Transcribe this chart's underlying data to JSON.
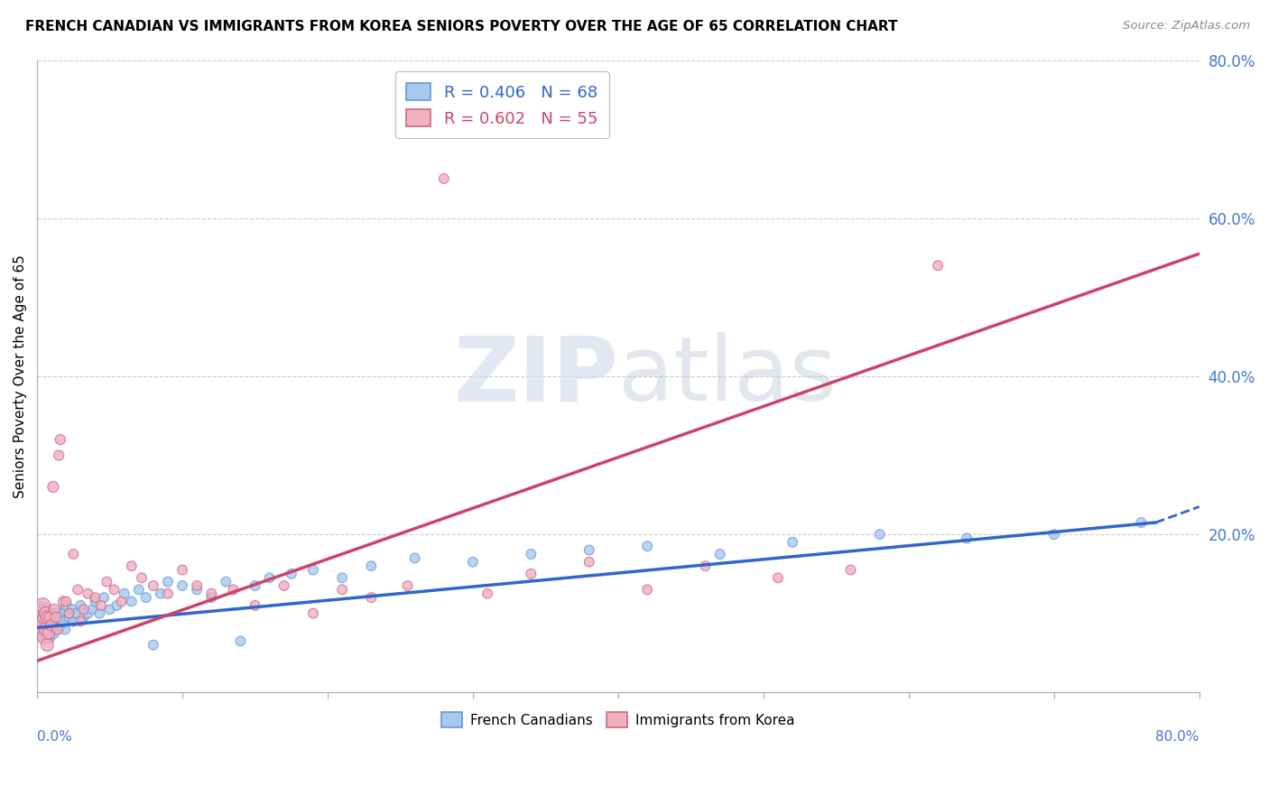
{
  "title": "FRENCH CANADIAN VS IMMIGRANTS FROM KOREA SENIORS POVERTY OVER THE AGE OF 65 CORRELATION CHART",
  "source": "Source: ZipAtlas.com",
  "ylabel": "Seniors Poverty Over the Age of 65",
  "series": [
    {
      "name": "French Canadians",
      "R": 0.406,
      "N": 68,
      "color": "#a8c8f0",
      "edge_color": "#6699cc",
      "trend_color": "#3366cc",
      "x": [
        0.002,
        0.003,
        0.004,
        0.004,
        0.005,
        0.005,
        0.006,
        0.006,
        0.007,
        0.007,
        0.008,
        0.008,
        0.009,
        0.009,
        0.01,
        0.01,
        0.011,
        0.012,
        0.013,
        0.014,
        0.015,
        0.016,
        0.017,
        0.018,
        0.019,
        0.02,
        0.022,
        0.024,
        0.025,
        0.027,
        0.03,
        0.032,
        0.035,
        0.038,
        0.04,
        0.043,
        0.046,
        0.05,
        0.055,
        0.06,
        0.065,
        0.07,
        0.075,
        0.08,
        0.085,
        0.09,
        0.1,
        0.11,
        0.12,
        0.13,
        0.14,
        0.15,
        0.16,
        0.175,
        0.19,
        0.21,
        0.23,
        0.26,
        0.3,
        0.34,
        0.38,
        0.42,
        0.47,
        0.52,
        0.58,
        0.64,
        0.7,
        0.76
      ],
      "y": [
        0.08,
        0.095,
        0.085,
        0.105,
        0.075,
        0.09,
        0.08,
        0.1,
        0.085,
        0.095,
        0.07,
        0.09,
        0.08,
        0.1,
        0.085,
        0.095,
        0.075,
        0.09,
        0.085,
        0.1,
        0.095,
        0.085,
        0.1,
        0.09,
        0.08,
        0.11,
        0.095,
        0.105,
        0.09,
        0.1,
        0.11,
        0.095,
        0.1,
        0.105,
        0.115,
        0.1,
        0.12,
        0.105,
        0.11,
        0.125,
        0.115,
        0.13,
        0.12,
        0.06,
        0.125,
        0.14,
        0.135,
        0.13,
        0.12,
        0.14,
        0.065,
        0.135,
        0.145,
        0.15,
        0.155,
        0.145,
        0.16,
        0.17,
        0.165,
        0.175,
        0.18,
        0.185,
        0.175,
        0.19,
        0.2,
        0.195,
        0.2,
        0.215
      ],
      "sizes": [
        200,
        180,
        160,
        150,
        140,
        130,
        130,
        120,
        110,
        110,
        100,
        100,
        95,
        95,
        90,
        90,
        85,
        85,
        80,
        80,
        80,
        75,
        75,
        70,
        70,
        70,
        65,
        65,
        65,
        65,
        60,
        60,
        60,
        60,
        60,
        60,
        60,
        60,
        60,
        60,
        60,
        60,
        60,
        60,
        60,
        60,
        60,
        60,
        60,
        60,
        60,
        60,
        60,
        60,
        60,
        60,
        60,
        60,
        60,
        60,
        60,
        60,
        60,
        60,
        60,
        60,
        60,
        60
      ]
    },
    {
      "name": "Immigrants from Korea",
      "R": 0.602,
      "N": 55,
      "color": "#f0b0c0",
      "edge_color": "#cc6688",
      "trend_color": "#cc4466",
      "x": [
        0.002,
        0.003,
        0.004,
        0.004,
        0.005,
        0.005,
        0.006,
        0.006,
        0.007,
        0.007,
        0.008,
        0.009,
        0.01,
        0.011,
        0.012,
        0.013,
        0.014,
        0.015,
        0.016,
        0.018,
        0.02,
        0.022,
        0.025,
        0.028,
        0.03,
        0.032,
        0.035,
        0.04,
        0.044,
        0.048,
        0.053,
        0.058,
        0.065,
        0.072,
        0.08,
        0.09,
        0.1,
        0.11,
        0.12,
        0.135,
        0.15,
        0.17,
        0.19,
        0.21,
        0.23,
        0.255,
        0.28,
        0.31,
        0.34,
        0.38,
        0.42,
        0.46,
        0.51,
        0.56,
        0.62
      ],
      "y": [
        0.08,
        0.1,
        0.09,
        0.11,
        0.07,
        0.095,
        0.08,
        0.1,
        0.06,
        0.095,
        0.075,
        0.095,
        0.085,
        0.26,
        0.105,
        0.095,
        0.08,
        0.3,
        0.32,
        0.115,
        0.115,
        0.1,
        0.175,
        0.13,
        0.09,
        0.105,
        0.125,
        0.12,
        0.11,
        0.14,
        0.13,
        0.115,
        0.16,
        0.145,
        0.135,
        0.125,
        0.155,
        0.135,
        0.125,
        0.13,
        0.11,
        0.135,
        0.1,
        0.13,
        0.12,
        0.135,
        0.65,
        0.125,
        0.15,
        0.165,
        0.13,
        0.16,
        0.145,
        0.155,
        0.54
      ],
      "sizes": [
        180,
        160,
        150,
        140,
        130,
        120,
        110,
        110,
        100,
        100,
        90,
        85,
        80,
        75,
        75,
        70,
        70,
        65,
        65,
        65,
        60,
        60,
        60,
        60,
        60,
        60,
        60,
        60,
        60,
        60,
        60,
        60,
        60,
        60,
        60,
        60,
        60,
        60,
        60,
        60,
        60,
        60,
        60,
        60,
        60,
        60,
        60,
        60,
        60,
        60,
        60,
        60,
        60,
        60,
        60
      ]
    }
  ],
  "xlim": [
    0.0,
    0.8
  ],
  "ylim": [
    0.0,
    0.8
  ],
  "blue_trend_solid_end": 0.77,
  "blue_trend_y_start": 0.082,
  "blue_trend_y_end_solid": 0.215,
  "blue_trend_y_end_dash": 0.235,
  "pink_trend_y_start": 0.04,
  "pink_trend_y_end": 0.555,
  "watermark_zip_color": "#d0d8e8",
  "watermark_atlas_color": "#c0c8d8",
  "bg_color": "#ffffff",
  "grid_color": "#cccccc"
}
